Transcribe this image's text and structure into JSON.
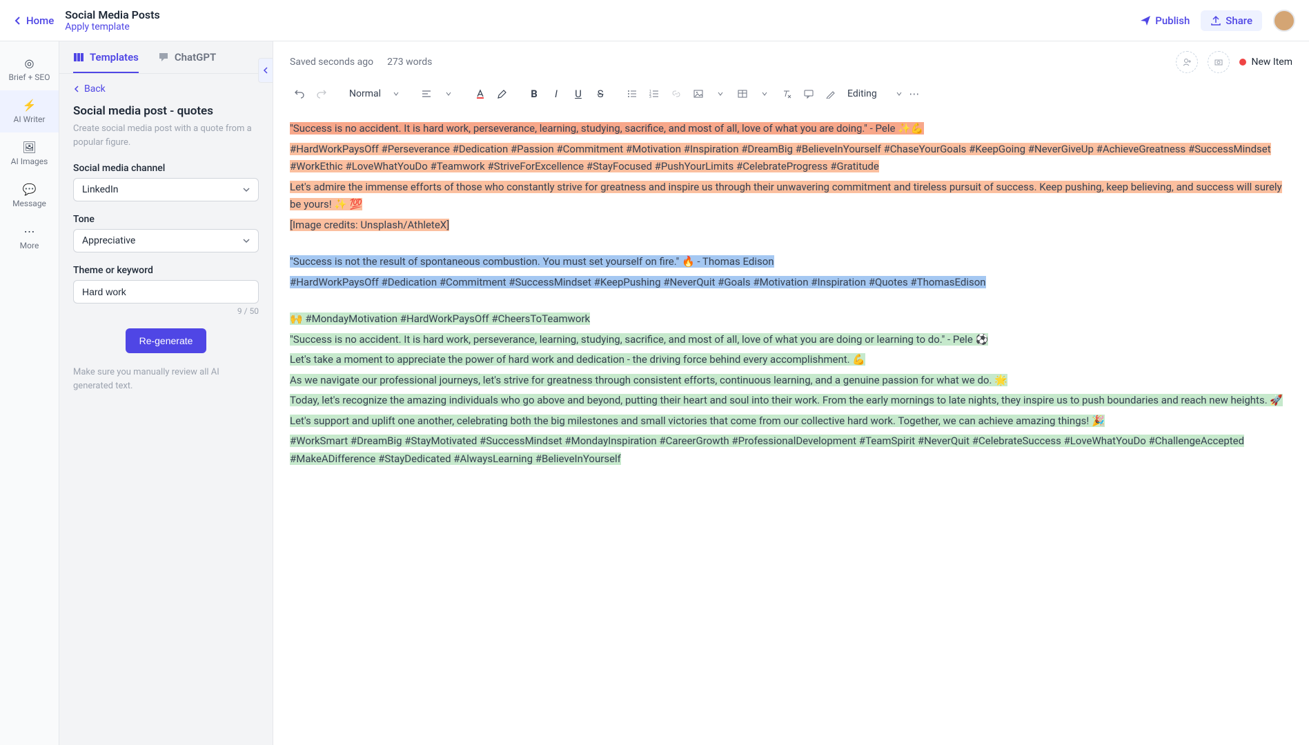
{
  "header": {
    "home_label": "Home",
    "doc_title": "Social Media Posts",
    "apply_template": "Apply template",
    "publish": "Publish",
    "share": "Share"
  },
  "rail": {
    "items": [
      {
        "label": "Brief + SEO",
        "icon": "◎"
      },
      {
        "label": "AI Writer",
        "icon": "⚡"
      },
      {
        "label": "AI Images",
        "icon": "🖼"
      },
      {
        "label": "Message",
        "icon": "💬"
      },
      {
        "label": "More",
        "icon": "⋯"
      }
    ],
    "active_index": 1
  },
  "sidebar": {
    "tabs": {
      "templates": "Templates",
      "chatgpt": "ChatGPT"
    },
    "back": "Back",
    "panel_title": "Social media post - quotes",
    "panel_desc": "Create social media post with a quote from a popular figure.",
    "channel_label": "Social media channel",
    "channel_value": "LinkedIn",
    "tone_label": "Tone",
    "tone_value": "Appreciative",
    "theme_label": "Theme or keyword",
    "theme_value": "Hard work",
    "char_count": "9 / 50",
    "regenerate": "Re-generate",
    "disclaimer": "Make sure you manually review all AI generated text."
  },
  "editor": {
    "save_status": "Saved seconds ago",
    "word_count": "273 words",
    "new_item": "New Item",
    "format_select": "Normal",
    "editing_label": "Editing",
    "highlight_colors": {
      "orange": "#fbbf9f",
      "salmon": "#f8a78a",
      "blue": "#a5c8f2",
      "green": "#c6e9cc"
    },
    "paragraphs": [
      {
        "text": "\"Success is no accident. It is hard work, perseverance, learning, studying, sacrifice, and most of all, love of what you are doing.\" - Pele ✨💪",
        "hl": "salmon"
      },
      {
        "text": "#HardWorkPaysOff #Perseverance #Dedication #Passion #Commitment #Motivation #Inspiration #DreamBig #BelieveInYourself #ChaseYourGoals #KeepGoing #NeverGiveUp #AchieveGreatness #SuccessMindset #WorkEthic #LoveWhatYouDo #Teamwork #StriveForExcellence #StayFocused #PushYourLimits #CelebrateProgress #Gratitude",
        "hl": "orange"
      },
      {
        "text": "Let's admire the immense efforts of those who constantly strive for greatness and inspire us through their unwavering commitment and tireless pursuit of success. Keep pushing, keep believing, and success will surely be yours! ✨ 💯",
        "hl": "orange"
      },
      {
        "text": "[Image credits: Unsplash/AthleteX]",
        "hl": "orange"
      },
      {
        "text": "\"Success is not the result of spontaneous combustion. You must set yourself on fire.\" 🔥 - Thomas Edison",
        "hl": "blue",
        "gap": true
      },
      {
        "text": "#HardWorkPaysOff #Dedication #Commitment #SuccessMindset #KeepPushing #NeverQuit #Goals #Motivation #Inspiration #Quotes #ThomasEdison",
        "hl": "blue"
      },
      {
        "text": "🙌 #MondayMotivation #HardWorkPaysOff #CheersToTeamwork",
        "hl": "green",
        "gap": true
      },
      {
        "text": "\"Success is no accident. It is hard work, perseverance, learning, studying, sacrifice, and most of all, love of what you are doing or learning to do.\" - Pele ⚽",
        "hl": "green"
      },
      {
        "text": "Let's take a moment to appreciate the power of hard work and dedication - the driving force behind every accomplishment. 💪",
        "hl": "green"
      },
      {
        "text": "As we navigate our professional journeys, let's strive for greatness through consistent efforts, continuous learning, and a genuine passion for what we do. 🌟",
        "hl": "green"
      },
      {
        "text": "Today, let's recognize the amazing individuals who go above and beyond, putting their heart and soul into their work. From the early mornings to late nights, they inspire us to push boundaries and reach new heights. 🚀",
        "hl": "green"
      },
      {
        "text": "Let's support and uplift one another, celebrating both the big milestones and small victories that come from our collective hard work. Together, we can achieve amazing things! 🎉",
        "hl": "green"
      },
      {
        "text": "#WorkSmart #DreamBig #StayMotivated #SuccessMindset #MondayInspiration #CareerGrowth #ProfessionalDevelopment #TeamSpirit #NeverQuit #CelebrateSuccess #LoveWhatYouDo #ChallengeAccepted #MakeADifference #StayDedicated #AlwaysLearning #BelieveInYourself",
        "hl": "green"
      }
    ]
  }
}
